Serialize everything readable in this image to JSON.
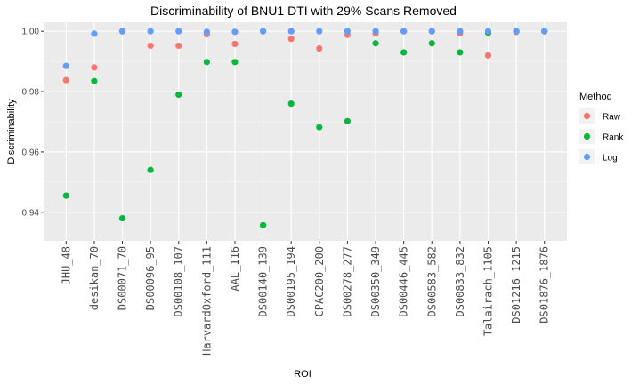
{
  "chart_data": {
    "type": "scatter",
    "title": "Discriminability of BNU1 DTI with 29% Scans Removed",
    "xlabel": "ROI",
    "ylabel": "Discriminability",
    "ylim": [
      0.9305,
      1.003
    ],
    "yticks": [
      0.94,
      0.96,
      0.98,
      1.0
    ],
    "ytick_labels": [
      "0.94",
      "0.96",
      "0.98",
      "1.00"
    ],
    "grid": true,
    "legend_position": "right",
    "legend_title": "Method",
    "categories": [
      "JHU_48",
      "desikan_70",
      "DS00071_70",
      "DS00096_95",
      "DS00108_107",
      "HarvardOxford_111",
      "AAL_116",
      "DS00140_139",
      "DS00195_194",
      "CPAC200_200",
      "DS00278_277",
      "DS00350_349",
      "DS00446_445",
      "DS00583_582",
      "DS00833_832",
      "Talairach_1105",
      "DS01216_1215",
      "DS01876_1876"
    ],
    "series": [
      {
        "name": "Raw",
        "color": "#f8766d",
        "values": [
          0.9838,
          0.988,
          1.0,
          0.9952,
          0.9952,
          0.999,
          0.9958,
          1.0,
          0.9975,
          0.9943,
          0.9988,
          0.9993,
          1.0,
          1.0,
          0.9993,
          0.992,
          0.9998,
          1.0
        ]
      },
      {
        "name": "Rank",
        "color": "#00ba38",
        "values": [
          0.9455,
          0.9835,
          0.938,
          0.954,
          0.979,
          0.9898,
          0.9898,
          0.9357,
          0.976,
          0.9682,
          0.9702,
          0.996,
          0.993,
          0.996,
          0.993,
          0.9995,
          1.0,
          1.0
        ]
      },
      {
        "name": "Log",
        "color": "#619cff",
        "values": [
          0.9885,
          0.9992,
          1.0,
          1.0,
          1.0,
          0.9998,
          0.9998,
          1.0,
          1.0,
          1.0,
          1.0,
          1.0,
          1.0,
          1.0,
          1.0,
          1.0,
          1.0,
          1.0
        ]
      }
    ]
  }
}
